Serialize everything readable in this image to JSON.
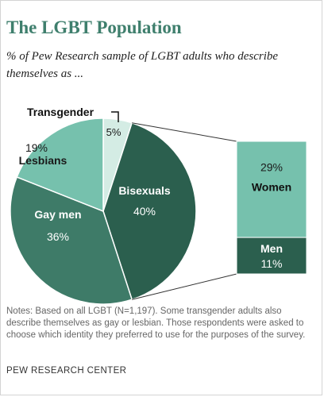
{
  "header": {
    "title": "The LGBT Population",
    "subtitle": "% of Pew Research sample of LGBT adults who describe themselves as ..."
  },
  "colors": {
    "title": "#3f7f6d",
    "lesbians": "#76c1ad",
    "transgender": "#d4ece4",
    "bisexuals": "#2b5f4e",
    "gay_men": "#3e7b68",
    "women": "#76c1ad",
    "men": "#2b5f4e"
  },
  "chart_data": {
    "type": "pie",
    "slices": [
      {
        "label": "Transgender",
        "value": 5,
        "value_label": "5%"
      },
      {
        "label": "Bisexuals",
        "value": 40,
        "value_label": "40%"
      },
      {
        "label": "Gay men",
        "value": 36,
        "value_label": "36%"
      },
      {
        "label": "Lesbians",
        "value": 19,
        "value_label": "19%"
      }
    ],
    "breakout": {
      "of": "Bisexuals",
      "type": "stacked-bar",
      "segments": [
        {
          "label": "Women",
          "value": 29,
          "value_label": "29%"
        },
        {
          "label": "Men",
          "value": 11,
          "value_label": "11%"
        }
      ]
    }
  },
  "footer": {
    "notes": "Notes: Based on all LGBT (N=1,197). Some transgender adults also describe themselves as gay or lesbian. Those respondents were asked to choose which identity they preferred to use for the purposes of the survey.",
    "source": "PEW RESEARCH CENTER"
  }
}
